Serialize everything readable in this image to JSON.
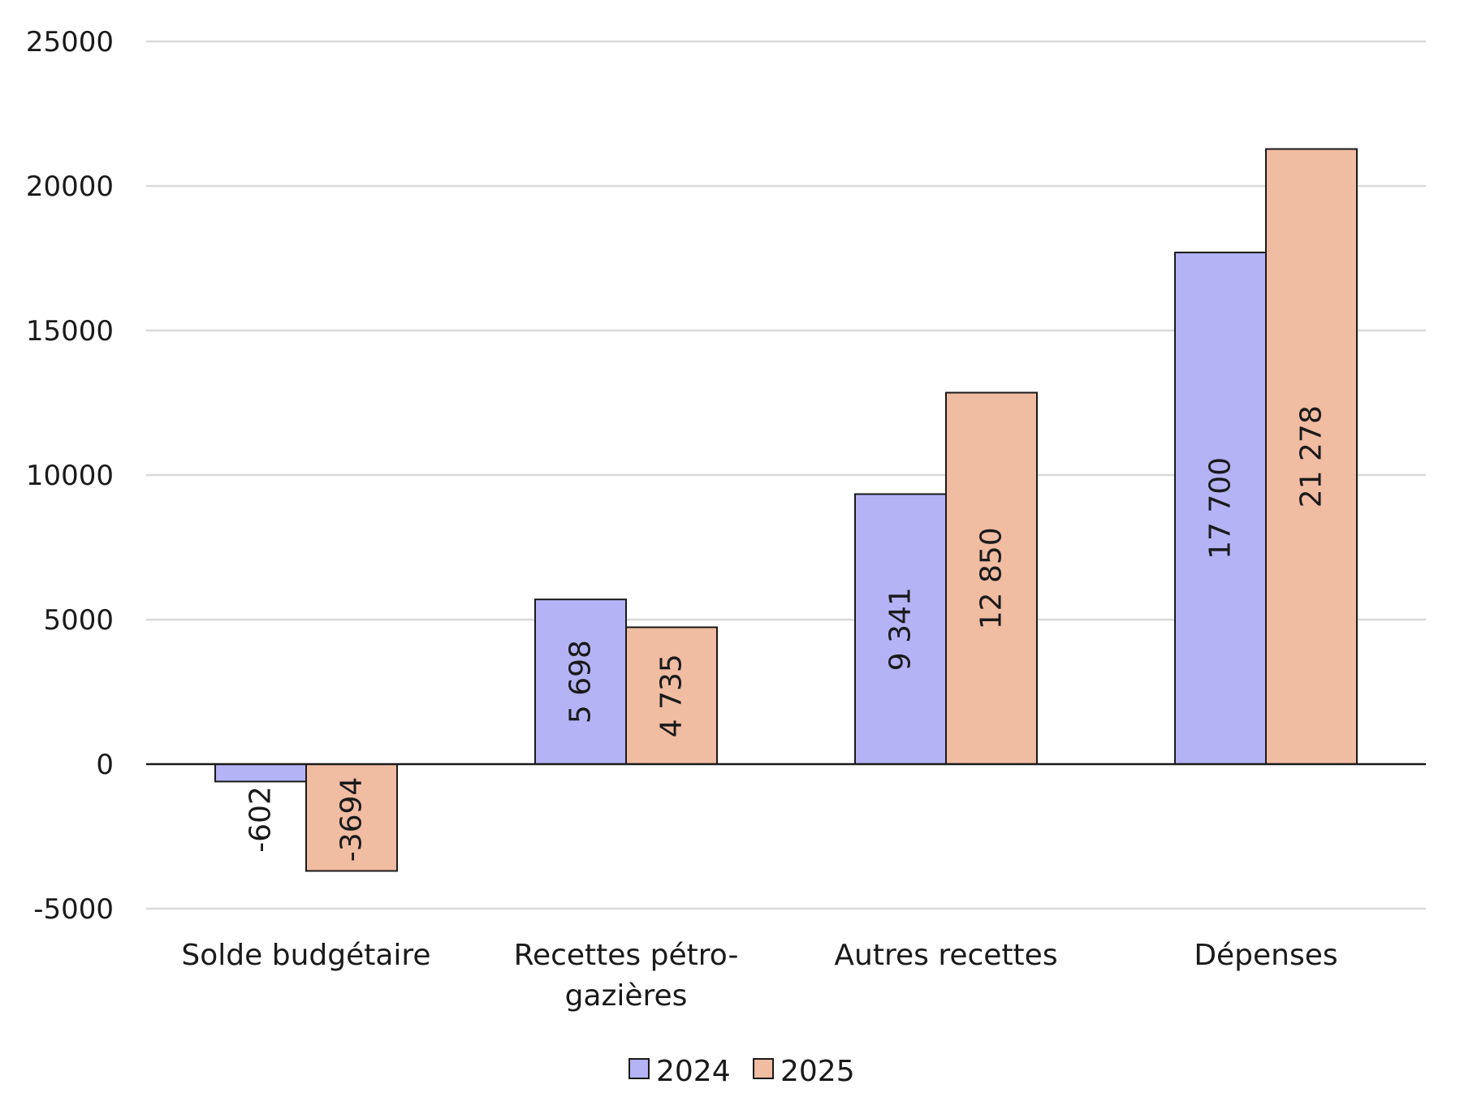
{
  "chart_data": {
    "type": "bar",
    "categories": [
      [
        "Solde budgétaire"
      ],
      [
        "Recettes pétro-",
        "gazières"
      ],
      [
        "Autres recettes"
      ],
      [
        "Dépenses"
      ]
    ],
    "series": [
      {
        "name": "2024",
        "color": "#b3b3f5",
        "values": [
          -602,
          5698,
          9341,
          17700
        ],
        "labels": [
          "-602",
          "5 698",
          "9 341",
          "17 700"
        ]
      },
      {
        "name": "2025",
        "color": "#f0bca2",
        "values": [
          -3694,
          4735,
          12850,
          21278
        ],
        "labels": [
          "-3694",
          "4 735",
          "12 850",
          "21 278"
        ]
      }
    ],
    "yticks": [
      25000,
      20000,
      15000,
      10000,
      5000,
      0,
      -5000
    ],
    "ytick_labels": [
      "25000",
      "20000",
      "15000",
      "10000",
      "5000",
      "0",
      "-5000"
    ],
    "ylim": [
      -5000,
      25000
    ],
    "grid": true,
    "legend_position": "bottom-center"
  }
}
